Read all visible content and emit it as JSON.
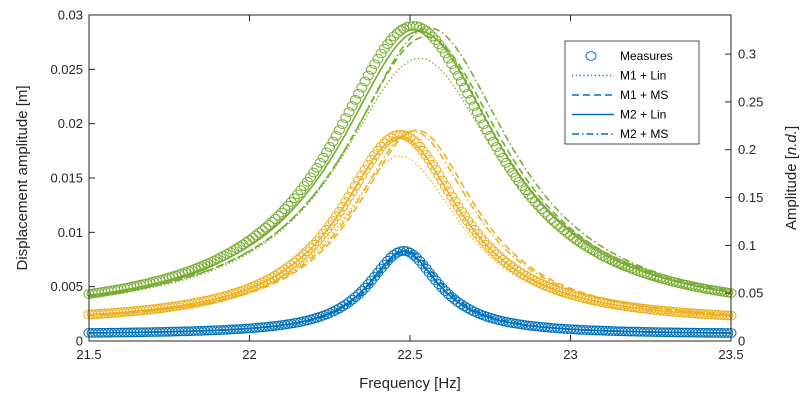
{
  "chart_data": {
    "type": "line",
    "xlabel": "Frequency [Hz]",
    "ylabel": "Displacement amplitude [m]",
    "y2label": "Amplitude [",
    "y2label_italic": "n.d.",
    "y2label_close": "]",
    "xlim": [
      21.5,
      23.5
    ],
    "ylim": [
      0,
      0.03
    ],
    "y2lim": [
      0,
      0.3409
    ],
    "xticks": [
      "21.5",
      "22",
      "22.5",
      "23",
      "23.5"
    ],
    "yticks": [
      "0",
      "0.005",
      "0.01",
      "0.015",
      "0.02",
      "0.025",
      "0.03"
    ],
    "y2ticks": [
      "0",
      "0.05",
      "0.1",
      "0.15",
      "0.2",
      "0.25",
      "0.3"
    ],
    "grid": false,
    "legend_position": "top-right",
    "legend": [
      "Measures",
      "M1 + Lin",
      "M1 + MS",
      "M2 + Lin",
      "M2 + MS"
    ],
    "groups": [
      {
        "color": "#0072BD",
        "measures": {
          "peak": 0.0083,
          "f0": 22.48,
          "gamma": 0.135,
          "base": 0.0006
        },
        "lines": [
          {
            "style": "dotted",
            "peak": 0.0081,
            "f0": 22.48,
            "gamma": 0.135,
            "base": 0.0006
          },
          {
            "style": "dashed",
            "peak": 0.0082,
            "f0": 22.48,
            "gamma": 0.135,
            "base": 0.0006
          },
          {
            "style": "solid",
            "peak": 0.0083,
            "f0": 22.48,
            "gamma": 0.135,
            "base": 0.0006
          },
          {
            "style": "dashdot",
            "peak": 0.0083,
            "f0": 22.49,
            "gamma": 0.135,
            "base": 0.0006
          }
        ]
      },
      {
        "color": "#EDB120",
        "measures": {
          "peak": 0.019,
          "f0": 22.47,
          "gamma": 0.23,
          "base": 0.0015
        },
        "lines": [
          {
            "style": "dotted",
            "peak": 0.017,
            "f0": 22.47,
            "gamma": 0.23,
            "base": 0.0015
          },
          {
            "style": "dashed",
            "peak": 0.0194,
            "f0": 22.52,
            "gamma": 0.23,
            "base": 0.0015
          },
          {
            "style": "solid",
            "peak": 0.0188,
            "f0": 22.47,
            "gamma": 0.23,
            "base": 0.0015
          },
          {
            "style": "dashdot",
            "peak": 0.0193,
            "f0": 22.51,
            "gamma": 0.23,
            "base": 0.0015
          }
        ]
      },
      {
        "color": "#77AC30",
        "measures": {
          "peak": 0.029,
          "f0": 22.51,
          "gamma": 0.31,
          "base": 0.002
        },
        "lines": [
          {
            "style": "dotted",
            "peak": 0.026,
            "f0": 22.53,
            "gamma": 0.31,
            "base": 0.002
          },
          {
            "style": "dashed",
            "peak": 0.028,
            "f0": 22.55,
            "gamma": 0.31,
            "base": 0.002
          },
          {
            "style": "solid",
            "peak": 0.0285,
            "f0": 22.53,
            "gamma": 0.31,
            "base": 0.002
          },
          {
            "style": "dashdot",
            "peak": 0.0288,
            "f0": 22.56,
            "gamma": 0.31,
            "base": 0.002
          }
        ]
      }
    ]
  }
}
